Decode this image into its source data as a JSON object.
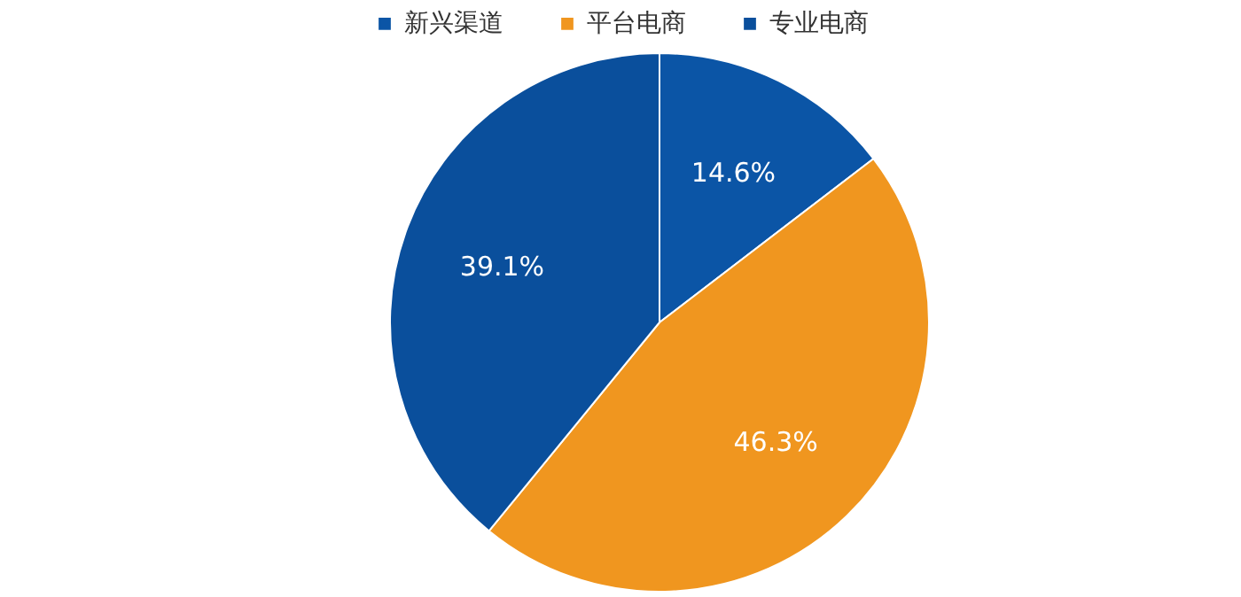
{
  "chart_data": {
    "type": "pie",
    "categories": [
      "新兴渠道",
      "平台电商",
      "专业电商"
    ],
    "values": [
      14.6,
      46.3,
      39.1
    ],
    "colors": [
      "#0b55a6",
      "#f0961f",
      "#0a4f9c"
    ],
    "value_labels": [
      "14.6%",
      "46.3%",
      "39.1%"
    ],
    "legend": "top"
  }
}
